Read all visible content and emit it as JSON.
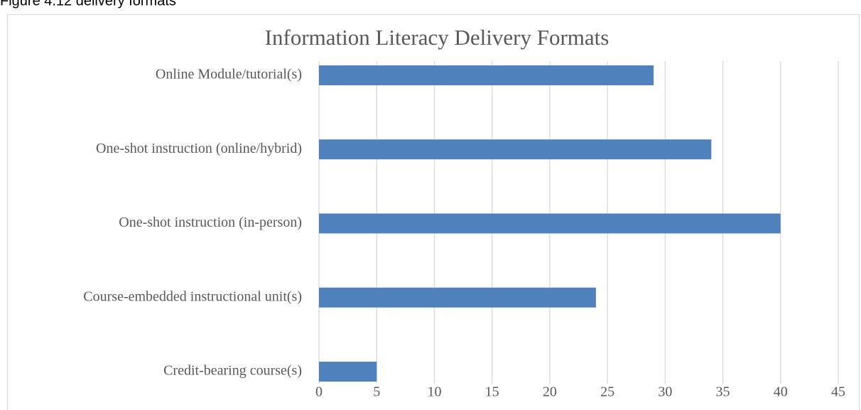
{
  "caption": "Figure 4.12 delivery formats",
  "chart_data": {
    "type": "barh",
    "title": "Information Literacy Delivery Formats",
    "categories": [
      "Online Module/tutorial(s)",
      "One-shot instruction (online/hybrid)",
      "One-shot instruction (in-person)",
      "Course-embedded instructional unit(s)",
      "Credit-bearing course(s)"
    ],
    "values": [
      29,
      34,
      40,
      24,
      5
    ],
    "color": "#4f81bd",
    "xlim": [
      0,
      45
    ],
    "xticks": [
      0,
      5,
      10,
      15,
      20,
      25,
      30,
      35,
      40,
      45
    ],
    "grid": true
  }
}
